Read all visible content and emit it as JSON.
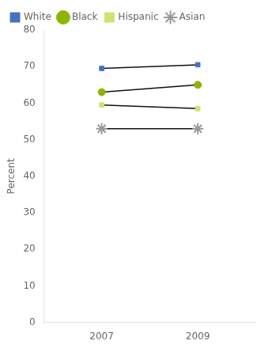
{
  "chart_data": {
    "type": "line",
    "x": [
      2007,
      2009
    ],
    "xlim": [
      2005.8,
      2010.2
    ],
    "xticks": [
      2007,
      2009
    ],
    "ylim": [
      0,
      80
    ],
    "yticks": [
      0,
      10,
      20,
      30,
      40,
      50,
      60,
      70,
      80
    ],
    "ylabel": "Percent",
    "color": "#111111",
    "grid": false,
    "legend": "upper left",
    "series": [
      {
        "name": "White",
        "color": "#4472c4",
        "marker": "square",
        "values": [
          69.5,
          70.5
        ]
      },
      {
        "name": "Black",
        "color": "#8db500",
        "marker": "circle",
        "values": [
          63.0,
          65.0
        ]
      },
      {
        "name": "Hispanic",
        "color": "#d4e070",
        "marker": "square",
        "values": [
          59.5,
          58.5
        ]
      },
      {
        "name": "Asian",
        "color": "#999999",
        "marker": "star",
        "values": [
          53.0,
          53.0
        ]
      }
    ]
  }
}
